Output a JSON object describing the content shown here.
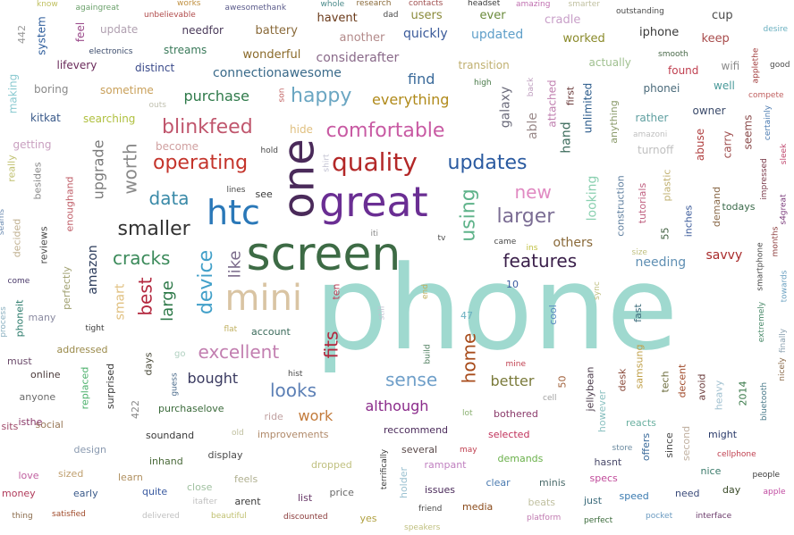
{
  "words": [
    {
      "text": "phone",
      "color": "#9fd9cf"
    },
    {
      "text": "screen",
      "color": "#3d6b45"
    },
    {
      "text": "great",
      "color": "#6a2e93"
    },
    {
      "text": "one",
      "color": "#4a2a5a"
    },
    {
      "text": "htc",
      "color": "#2a78b8"
    },
    {
      "text": "mini",
      "color": "#d9c4a3"
    },
    {
      "text": "quality",
      "color": "#b32828"
    },
    {
      "text": "updates",
      "color": "#2a5aa0"
    },
    {
      "text": "operating",
      "color": "#c4342b"
    },
    {
      "text": "blinkfeed",
      "color": "#c0566d"
    },
    {
      "text": "comfortable",
      "color": "#c85aa3"
    },
    {
      "text": "happy",
      "color": "#6aa6c2"
    },
    {
      "text": "smaller",
      "color": "#333333"
    },
    {
      "text": "larger",
      "color": "#7b6d94"
    },
    {
      "text": "features",
      "color": "#3a1f4a"
    },
    {
      "text": "cracks",
      "color": "#3b8a5a"
    },
    {
      "text": "excellent",
      "color": "#c27fb0"
    },
    {
      "text": "worth",
      "color": "#8a8a8a"
    },
    {
      "text": "data",
      "color": "#3a8aa8"
    },
    {
      "text": "device",
      "color": "#42a0c9"
    },
    {
      "text": "new",
      "color": "#e08ac2"
    },
    {
      "text": "using",
      "color": "#5fb38a"
    },
    {
      "text": "fits",
      "color": "#b3273e"
    },
    {
      "text": "sense",
      "color": "#6f9fc9"
    },
    {
      "text": "looks",
      "color": "#5b7fb5"
    },
    {
      "text": "best",
      "color": "#b3273e"
    },
    {
      "text": "large",
      "color": "#2f7a4a"
    },
    {
      "text": "like",
      "color": "#7a6a8a"
    },
    {
      "text": "home",
      "color": "#a84c1c"
    },
    {
      "text": "bought",
      "color": "#3a3a60"
    },
    {
      "text": "although",
      "color": "#8a2a8a"
    },
    {
      "text": "find",
      "color": "#3a6a9a"
    },
    {
      "text": "everything",
      "color": "#b08a1a"
    },
    {
      "text": "purchase",
      "color": "#2f7a4a"
    },
    {
      "text": "upgrade",
      "color": "#7a7a7a"
    },
    {
      "text": "work",
      "color": "#c27a3a"
    },
    {
      "text": "better",
      "color": "#7a7a3a"
    },
    {
      "text": "amazon",
      "color": "#2a3a5a"
    },
    {
      "text": "smart",
      "color": "#e0c080"
    },
    {
      "text": "galaxy",
      "color": "#6a6a7a"
    },
    {
      "text": "able",
      "color": "#9a8a8a"
    },
    {
      "text": "hand",
      "color": "#3a6a5a"
    },
    {
      "text": "looking",
      "color": "#8ad0b0"
    },
    {
      "text": "others",
      "color": "#8a6a3a"
    },
    {
      "text": "needing",
      "color": "#5f8fb3"
    },
    {
      "text": "savvy",
      "color": "#a82a2a"
    },
    {
      "text": "connectionawesome",
      "color": "#3a6a8a"
    },
    {
      "text": "considerafter",
      "color": "#8a6a8a"
    },
    {
      "text": "quickly",
      "color": "#3a5a9a"
    },
    {
      "text": "updated",
      "color": "#5f9fc9"
    },
    {
      "text": "worked",
      "color": "#8a8a2a"
    },
    {
      "text": "iphone",
      "color": "#3a3a3a"
    },
    {
      "text": "keep",
      "color": "#a84c4c"
    },
    {
      "text": "wonderful",
      "color": "#8a6a2a"
    },
    {
      "text": "battery",
      "color": "#8a6a3a"
    },
    {
      "text": "another",
      "color": "#b38a8a"
    },
    {
      "text": "havent",
      "color": "#6a3a1a"
    },
    {
      "text": "users",
      "color": "#8a8a3a"
    },
    {
      "text": "ever",
      "color": "#6a8a3a"
    },
    {
      "text": "cradle",
      "color": "#c9a0c9"
    },
    {
      "text": "cup",
      "color": "#4a4a4a"
    },
    {
      "text": "update",
      "color": "#b0a0b0"
    },
    {
      "text": "needfor",
      "color": "#4a3a5a"
    },
    {
      "text": "streams",
      "color": "#3a7a5a"
    },
    {
      "text": "distinct",
      "color": "#3a4a8a"
    },
    {
      "text": "lifevery",
      "color": "#6a2a5a"
    },
    {
      "text": "feel",
      "color": "#9a4a8a"
    },
    {
      "text": "system",
      "color": "#2a5a9a"
    },
    {
      "text": "boring",
      "color": "#8a8a8a"
    },
    {
      "text": "sometime",
      "color": "#c9a05a"
    },
    {
      "text": "searching",
      "color": "#b0c040"
    },
    {
      "text": "kitkat",
      "color": "#3a5a8a"
    },
    {
      "text": "making",
      "color": "#8ac9d0"
    },
    {
      "text": "getting",
      "color": "#c9a0c0"
    },
    {
      "text": "become",
      "color": "#d0a0a0"
    },
    {
      "text": "hide",
      "color": "#e0c080"
    },
    {
      "text": "transition",
      "color": "#c0b070"
    },
    {
      "text": "actually",
      "color": "#a0c090"
    },
    {
      "text": "found",
      "color": "#c04050"
    },
    {
      "text": "wifi",
      "color": "#8a8a8a"
    },
    {
      "text": "phonei",
      "color": "#4a6a7a"
    },
    {
      "text": "well",
      "color": "#4a9a9a"
    },
    {
      "text": "owner",
      "color": "#3a4a6a"
    },
    {
      "text": "rather",
      "color": "#5f9fa0"
    },
    {
      "text": "turnoff",
      "color": "#c0c0c0"
    },
    {
      "text": "abuse",
      "color": "#b04040"
    },
    {
      "text": "carry",
      "color": "#a05050"
    },
    {
      "text": "seems",
      "color": "#8a4a4a"
    },
    {
      "text": "unlimited",
      "color": "#2a5a8a"
    },
    {
      "text": "attached",
      "color": "#c080b0"
    },
    {
      "text": "anything",
      "color": "#8a9a6a"
    },
    {
      "text": "first",
      "color": "#6a3a3a"
    },
    {
      "text": "construction",
      "color": "#5f7f9f"
    },
    {
      "text": "tutorials",
      "color": "#c06080"
    },
    {
      "text": "plastic",
      "color": "#c0b070"
    },
    {
      "text": "demand",
      "color": "#8a6a4a"
    },
    {
      "text": "todays",
      "color": "#3a6a4a"
    },
    {
      "text": "inches",
      "color": "#3a5a9a"
    },
    {
      "text": "55",
      "color": "#3a5a3a"
    },
    {
      "text": "see",
      "color": "#3a3a3a"
    },
    {
      "text": "reviews",
      "color": "#4a4a4a"
    },
    {
      "text": "besides",
      "color": "#8a8a8a"
    },
    {
      "text": "really",
      "color": "#c0c070"
    },
    {
      "text": "enoughand",
      "color": "#c0606a"
    },
    {
      "text": "decided",
      "color": "#c0b090"
    },
    {
      "text": "perfectly",
      "color": "#a0a070"
    },
    {
      "text": "phoneit",
      "color": "#2a7a6a"
    },
    {
      "text": "many",
      "color": "#8a8aa0"
    },
    {
      "text": "addressed",
      "color": "#9a8a4a"
    },
    {
      "text": "must",
      "color": "#6a4a6a"
    },
    {
      "text": "online",
      "color": "#4a3a3a"
    },
    {
      "text": "anyone",
      "color": "#6a6a6a"
    },
    {
      "text": "replaced",
      "color": "#4ab06a"
    },
    {
      "text": "surprised",
      "color": "#3a3a3a"
    },
    {
      "text": "sits",
      "color": "#a04a6a"
    },
    {
      "text": "social",
      "color": "#9a7a5a"
    },
    {
      "text": "isthe",
      "color": "#8a3a6a"
    },
    {
      "text": "design",
      "color": "#8a9ab0"
    },
    {
      "text": "love",
      "color": "#c060a0"
    },
    {
      "text": "sized",
      "color": "#c0a070"
    },
    {
      "text": "money",
      "color": "#b03a5a"
    },
    {
      "text": "early",
      "color": "#3a5a8a"
    },
    {
      "text": "quite",
      "color": "#3a5aa0"
    },
    {
      "text": "learn",
      "color": "#b09060"
    },
    {
      "text": "inhand",
      "color": "#4a6a3a"
    },
    {
      "text": "soundand",
      "color": "#3a3a3a"
    },
    {
      "text": "purchaselove",
      "color": "#3a6a3a"
    },
    {
      "text": "days",
      "color": "#4a4a3a"
    },
    {
      "text": "account",
      "color": "#3a6a5a"
    },
    {
      "text": "display",
      "color": "#4a4a4a"
    },
    {
      "text": "close",
      "color": "#a0c0a0"
    },
    {
      "text": "feels",
      "color": "#b0b090"
    },
    {
      "text": "arent",
      "color": "#3a3a3a"
    },
    {
      "text": "improvements",
      "color": "#b08a6a"
    },
    {
      "text": "ride",
      "color": "#c0a0a0"
    },
    {
      "text": "dropped",
      "color": "#c0c080"
    },
    {
      "text": "list",
      "color": "#6a3a6a"
    },
    {
      "text": "price",
      "color": "#6a6a6a"
    },
    {
      "text": "yes",
      "color": "#b0a040"
    },
    {
      "text": "reccommend",
      "color": "#4a2a5a"
    },
    {
      "text": "several",
      "color": "#5a4a4a"
    },
    {
      "text": "rampant",
      "color": "#c080c0"
    },
    {
      "text": "issues",
      "color": "#4a2a5a"
    },
    {
      "text": "holder",
      "color": "#9ac0d0"
    },
    {
      "text": "media",
      "color": "#8a4a1a"
    },
    {
      "text": "clear",
      "color": "#4a7ab0"
    },
    {
      "text": "beats",
      "color": "#c0c0a0"
    },
    {
      "text": "bothered",
      "color": "#8a3a6a"
    },
    {
      "text": "selected",
      "color": "#c0305a"
    },
    {
      "text": "demands",
      "color": "#6ab04a"
    },
    {
      "text": "minis",
      "color": "#4a6a6a"
    },
    {
      "text": "just",
      "color": "#3a6a7a"
    },
    {
      "text": "specs",
      "color": "#c04a9a"
    },
    {
      "text": "hasnt",
      "color": "#4a4a6a"
    },
    {
      "text": "speed",
      "color": "#3a7ab0"
    },
    {
      "text": "need",
      "color": "#3a4a7a"
    },
    {
      "text": "day",
      "color": "#3a4a2a"
    },
    {
      "text": "nice",
      "color": "#3a7a6a"
    },
    {
      "text": "might",
      "color": "#2a3a6a"
    },
    {
      "text": "jellybean",
      "color": "#4a3a4a"
    },
    {
      "text": "however",
      "color": "#8ac0c0"
    },
    {
      "text": "offers",
      "color": "#3a6a9a"
    },
    {
      "text": "since",
      "color": "#4a4a4a"
    },
    {
      "text": "second",
      "color": "#c0b0a0"
    },
    {
      "text": "reacts",
      "color": "#6ab0a0"
    },
    {
      "text": "2014",
      "color": "#3a7a4a"
    },
    {
      "text": "heavy",
      "color": "#a0c0d0"
    },
    {
      "text": "avoid",
      "color": "#6a3a3a"
    },
    {
      "text": "tech",
      "color": "#6a6a3a"
    },
    {
      "text": "decent",
      "color": "#a04a2a"
    },
    {
      "text": "desk",
      "color": "#8a4a3a"
    },
    {
      "text": "samsung",
      "color": "#c0a04a"
    },
    {
      "text": "50",
      "color": "#a0603a"
    },
    {
      "text": "fast",
      "color": "#3a6a7a"
    },
    {
      "text": "cool",
      "color": "#5a8ac0"
    },
    {
      "text": "422",
      "color": "#8a8a8a"
    },
    {
      "text": "442",
      "color": "#9a9a9a"
    },
    {
      "text": "10",
      "color": "#3a5aa0"
    },
    {
      "text": "47",
      "color": "#6ab0c0"
    },
    {
      "text": "ten",
      "color": "#c0405a"
    },
    {
      "text": "go",
      "color": "#b0d0c0"
    },
    {
      "text": "know",
      "color": "#c0c060"
    },
    {
      "text": "againgreat",
      "color": "#6aa06a"
    },
    {
      "text": "unbelievable",
      "color": "#b04a4a"
    },
    {
      "text": "works",
      "color": "#c09040"
    },
    {
      "text": "awesomethank",
      "color": "#5a5a8a"
    },
    {
      "text": "whole",
      "color": "#4a8a8a"
    },
    {
      "text": "research",
      "color": "#8a6a3a"
    },
    {
      "text": "dad",
      "color": "#4a4a4a"
    },
    {
      "text": "contacts",
      "color": "#a05050"
    },
    {
      "text": "headset",
      "color": "#3a3a3a"
    },
    {
      "text": "amazing",
      "color": "#c070b0"
    },
    {
      "text": "smarter",
      "color": "#c0c0a0"
    },
    {
      "text": "outstanding",
      "color": "#4a4a4a"
    },
    {
      "text": "desire",
      "color": "#6ab0c0"
    },
    {
      "text": "electronics",
      "color": "#3a4a6a"
    },
    {
      "text": "smooth",
      "color": "#4a6a4a"
    },
    {
      "text": "applethe",
      "color": "#a03a3a"
    },
    {
      "text": "good",
      "color": "#4a4a4a"
    },
    {
      "text": "son",
      "color": "#c06060"
    },
    {
      "text": "outs",
      "color": "#c0c0b0"
    },
    {
      "text": "high",
      "color": "#4a7a4a"
    },
    {
      "text": "back",
      "color": "#c0a0c0"
    },
    {
      "text": "compete",
      "color": "#c06060"
    },
    {
      "text": "certainly",
      "color": "#4a7ab0"
    },
    {
      "text": "amazoni",
      "color": "#c0c0c0"
    },
    {
      "text": "hold",
      "color": "#4a4a4a"
    },
    {
      "text": "shirt",
      "color": "#c0c0d0"
    },
    {
      "text": "sleek",
      "color": "#c04a70"
    },
    {
      "text": "impressed",
      "color": "#7a3a4a"
    },
    {
      "text": "s4great",
      "color": "#7a3a7a"
    },
    {
      "text": "lines",
      "color": "#4a4a4a"
    },
    {
      "text": "iti",
      "color": "#8a8a8a"
    },
    {
      "text": "tv",
      "color": "#4a4a4a"
    },
    {
      "text": "came",
      "color": "#4a4a4a"
    },
    {
      "text": "ins",
      "color": "#c0c040"
    },
    {
      "text": "size",
      "color": "#c0c080"
    },
    {
      "text": "smartphone",
      "color": "#4a4a4a"
    },
    {
      "text": "months",
      "color": "#8a3a3a"
    },
    {
      "text": "seams",
      "color": "#6a8ab0"
    },
    {
      "text": "come",
      "color": "#4a3a6a"
    },
    {
      "text": "process",
      "color": "#8ab0c0"
    },
    {
      "text": "end",
      "color": "#c0b060"
    },
    {
      "text": "sync",
      "color": "#c0c080"
    },
    {
      "text": "towards",
      "color": "#6aa0c0"
    },
    {
      "text": "extremely",
      "color": "#4a8a6a"
    },
    {
      "text": "finally",
      "color": "#8aa0b0"
    },
    {
      "text": "tight",
      "color": "#3a3a3a"
    },
    {
      "text": "flat",
      "color": "#c0b060"
    },
    {
      "text": "still",
      "color": "#c0c0d0"
    },
    {
      "text": "build",
      "color": "#4a7a5a"
    },
    {
      "text": "hist",
      "color": "#4a4a4a"
    },
    {
      "text": "guess",
      "color": "#4a6a8a"
    },
    {
      "text": "mine",
      "color": "#c04050"
    },
    {
      "text": "cell",
      "color": "#a0a0a0"
    },
    {
      "text": "bluetooth",
      "color": "#4a7a8a"
    },
    {
      "text": "nicely",
      "color": "#8a6a4a"
    },
    {
      "text": "old",
      "color": "#c0c0a0"
    },
    {
      "text": "lot",
      "color": "#8ab070"
    },
    {
      "text": "may",
      "color": "#c04050"
    },
    {
      "text": "store",
      "color": "#6a8aa0"
    },
    {
      "text": "cellphone",
      "color": "#c04050"
    },
    {
      "text": "people",
      "color": "#3a3a3a"
    },
    {
      "text": "apple",
      "color": "#c04aa0"
    },
    {
      "text": "thing",
      "color": "#8a6a4a"
    },
    {
      "text": "satisfied",
      "color": "#a04a2a"
    },
    {
      "text": "delivered",
      "color": "#c0c0c0"
    },
    {
      "text": "itafter",
      "color": "#c0c0c0"
    },
    {
      "text": "beautiful",
      "color": "#c0c070"
    },
    {
      "text": "discounted",
      "color": "#8a3a3a"
    },
    {
      "text": "terrifically",
      "color": "#3a3a3a"
    },
    {
      "text": "friend",
      "color": "#4a4a4a"
    },
    {
      "text": "speakers",
      "color": "#c0c080"
    },
    {
      "text": "platform",
      "color": "#c07ab0"
    },
    {
      "text": "perfect",
      "color": "#3a6a3a"
    },
    {
      "text": "pocket",
      "color": "#6a9ac0"
    },
    {
      "text": "interface",
      "color": "#6a3a6a"
    }
  ]
}
